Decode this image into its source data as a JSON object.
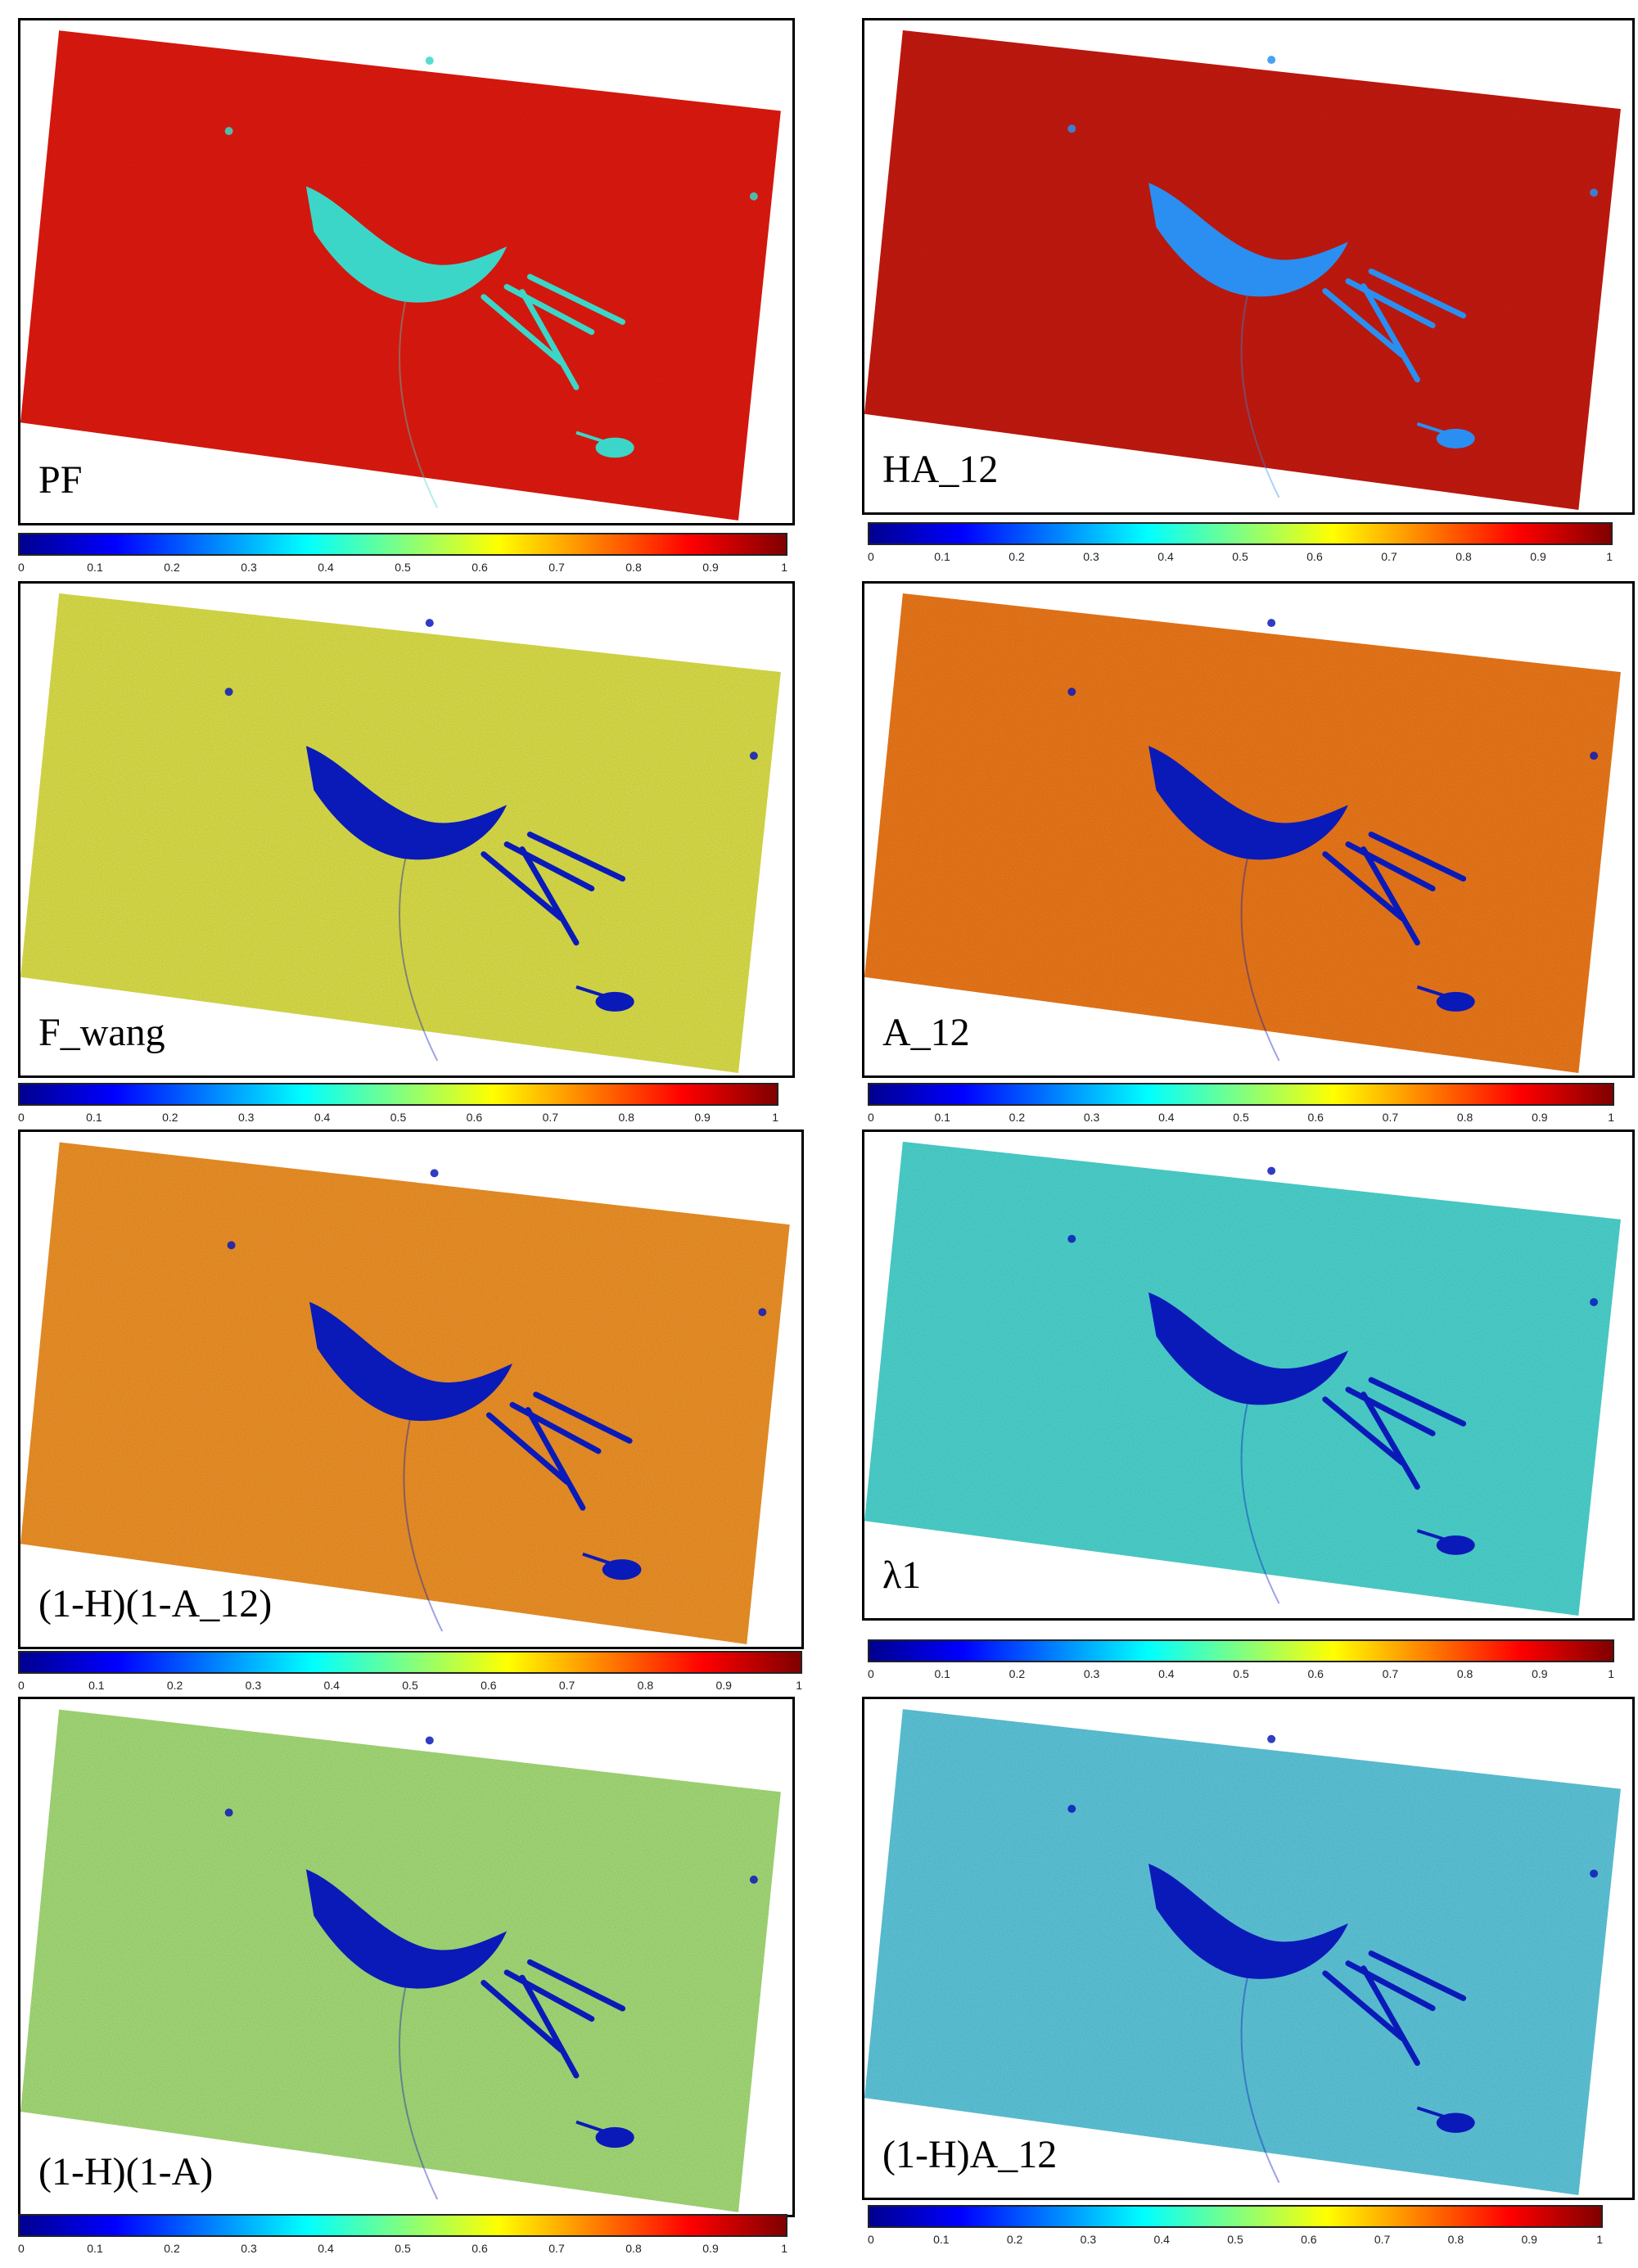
{
  "figure": {
    "colormap": [
      "#00008f",
      "#0000ff",
      "#0080ff",
      "#00ffff",
      "#80ff80",
      "#ffff00",
      "#ff8000",
      "#ff0000",
      "#800000"
    ],
    "colorbar_ticks": [
      "0",
      "0.1",
      "0.2",
      "0.3",
      "0.4",
      "0.5",
      "0.6",
      "0.7",
      "0.8",
      "0.9",
      "1"
    ]
  },
  "panels": [
    {
      "label": "PF",
      "background_color": "#e41a10",
      "feature_color": "#3cd6c8"
    },
    {
      "label": "HA_12",
      "background_color": "#c81a10",
      "feature_color": "#2a8ff0"
    },
    {
      "label": "F_wang",
      "background_color": "#dfe24a",
      "feature_color": "#0a1ab8"
    },
    {
      "label": "A_12",
      "background_color": "#f07a1a",
      "feature_color": "#0a1ab8"
    },
    {
      "label": "(1-H)(1-A_12)",
      "background_color": "#f29428",
      "feature_color": "#0a1ab8"
    },
    {
      "label": "λ1",
      "background_color": "#4ed7d2",
      "feature_color": "#0a1ab8"
    },
    {
      "label": "(1-H)(1-A)",
      "background_color": "#a8df7a",
      "feature_color": "#0a1ab8"
    },
    {
      "label": "(1-H)A_12",
      "background_color": "#5fc9de",
      "feature_color": "#0a1ab8"
    }
  ]
}
